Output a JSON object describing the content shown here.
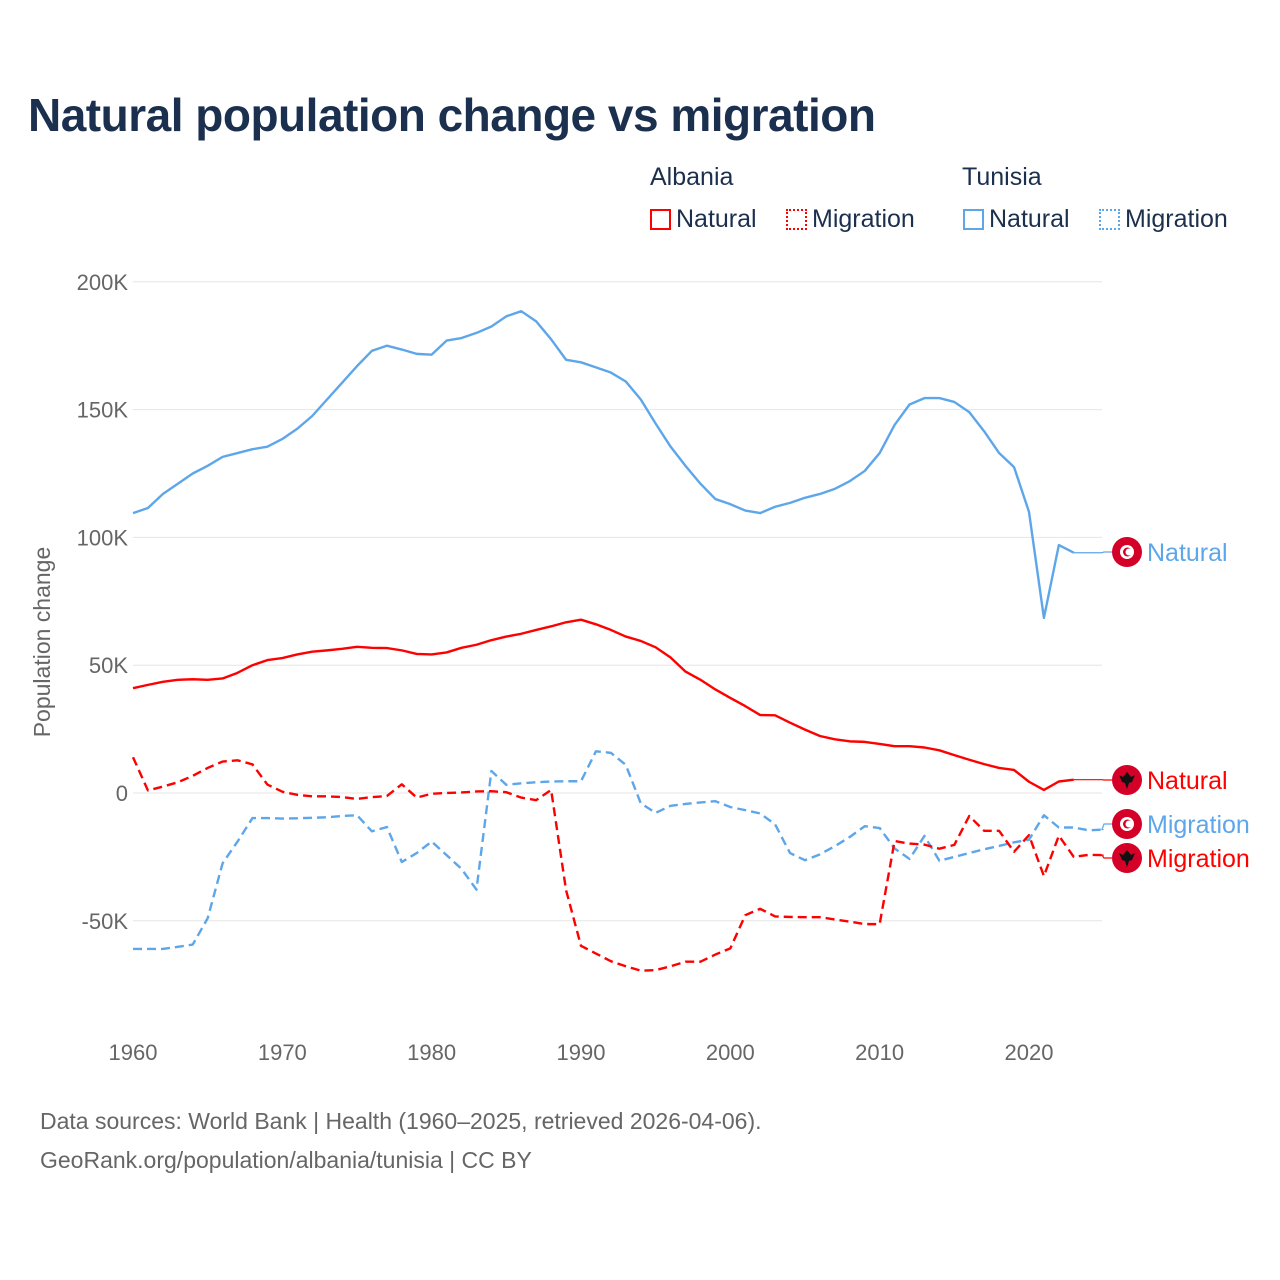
{
  "title": "Natural population change vs migration",
  "legend": {
    "groups": [
      {
        "name": "Albania",
        "items": [
          {
            "label": "Natural",
            "style": "solid"
          },
          {
            "label": "Migration",
            "style": "dotted"
          }
        ],
        "color": "#ff0000"
      },
      {
        "name": "Tunisia",
        "items": [
          {
            "label": "Natural",
            "style": "solid"
          },
          {
            "label": "Migration",
            "style": "dotted"
          }
        ],
        "color": "#5ea6ea"
      }
    ]
  },
  "footer": {
    "line1": "Data sources: World Bank | Health (1960–2025, retrieved 2026-04-06).",
    "line2": "GeoRank.org/population/albania/tunisia | CC BY"
  },
  "chart_data": {
    "type": "line",
    "title": "Natural population change vs migration",
    "xlabel": "",
    "ylabel": "Population change",
    "xlim": [
      1960,
      2025
    ],
    "ylim": [
      -85000,
      200000
    ],
    "x_ticks": [
      1960,
      1970,
      1980,
      1990,
      2000,
      2010,
      2020
    ],
    "x_tick_labels": [
      "1960",
      "1970",
      "1980",
      "1990",
      "2000",
      "2010",
      "2020"
    ],
    "y_ticks": [
      200000,
      150000,
      100000,
      50000,
      0,
      -50000
    ],
    "y_tick_labels": [
      "200K",
      "150K",
      "100K",
      "50K",
      "0",
      "-50K"
    ],
    "grid": true,
    "legend_placement": "top-right",
    "x_start": 1960,
    "series": [
      {
        "name": "Tunisia Natural",
        "country": "Tunisia",
        "end_label": "Natural",
        "color": "#5ea6ea",
        "dash": "solid",
        "values": [
          109500,
          111500,
          117000,
          121000,
          125000,
          128000,
          131500,
          133000,
          134500,
          135500,
          138500,
          142500,
          147500,
          154000,
          160500,
          167000,
          173000,
          175000,
          173500,
          171800,
          171500,
          177000,
          178000,
          180000,
          182500,
          186500,
          188500,
          184500,
          177500,
          169500,
          168500,
          166500,
          164500,
          161000,
          154000,
          144500,
          135500,
          128000,
          121000,
          115000,
          113000,
          110500,
          109500,
          112000,
          113500,
          115500,
          117000,
          119000,
          122000,
          126000,
          133000,
          144000,
          152000,
          154500,
          154500,
          153000,
          149000,
          141500,
          133000,
          127500,
          110000,
          68500,
          97000,
          94000
        ]
      },
      {
        "name": "Albania Natural",
        "country": "Albania",
        "end_label": "Natural",
        "color": "#ff0000",
        "dash": "solid",
        "values": [
          41000,
          42300,
          43500,
          44300,
          44500,
          44300,
          44800,
          47000,
          50000,
          52000,
          52800,
          54200,
          55300,
          55800,
          56400,
          57200,
          56800,
          56700,
          55800,
          54400,
          54200,
          55000,
          56800,
          58000,
          59800,
          61200,
          62300,
          63800,
          65200,
          66800,
          67800,
          66000,
          63800,
          61200,
          59500,
          57000,
          53000,
          47500,
          44300,
          40500,
          37200,
          34000,
          30500,
          30400,
          27500,
          24800,
          22300,
          21000,
          20200,
          20000,
          19200,
          18300,
          18300,
          17800,
          16700,
          14800,
          13000,
          11300,
          9800,
          9000,
          4400,
          1200,
          4500,
          5200
        ]
      },
      {
        "name": "Tunisia Migration",
        "country": "Tunisia",
        "end_label": "Migration",
        "color": "#5ea6ea",
        "dash": "dashed",
        "values": [
          -61000,
          -61000,
          -61000,
          -60200,
          -59300,
          -49000,
          -27500,
          -19000,
          -9800,
          -9800,
          -10000,
          -9900,
          -9700,
          -9500,
          -9000,
          -8700,
          -15000,
          -13300,
          -27000,
          -23500,
          -19000,
          -24300,
          -29700,
          -37800,
          8600,
          3200,
          3800,
          4200,
          4500,
          4600,
          4600,
          16300,
          15700,
          11000,
          -4000,
          -7800,
          -5000,
          -4300,
          -3700,
          -3200,
          -5500,
          -6700,
          -8000,
          -12300,
          -23500,
          -26300,
          -24000,
          -20800,
          -17200,
          -13000,
          -13700,
          -21700,
          -25800,
          -16800,
          -26500,
          -25000,
          -23500,
          -22000,
          -20700,
          -19300,
          -18300,
          -8700,
          -13500,
          -13500,
          -14600,
          -14300
        ]
      },
      {
        "name": "Albania Migration",
        "country": "Albania",
        "end_label": "Migration",
        "color": "#ff0000",
        "dash": "dashed",
        "values": [
          14000,
          1000,
          2500,
          4200,
          6700,
          9800,
          12300,
          12800,
          11200,
          3300,
          500,
          -700,
          -1300,
          -1300,
          -1600,
          -2300,
          -1600,
          -1200,
          3400,
          -1800,
          -300,
          0,
          200,
          600,
          700,
          300,
          -1800,
          -2800,
          1200,
          -38000,
          -59800,
          -62800,
          -65800,
          -67800,
          -69500,
          -69300,
          -67800,
          -66000,
          -66000,
          -63200,
          -60800,
          -47800,
          -45300,
          -48300,
          -48500,
          -48600,
          -48600,
          -49500,
          -50300,
          -51300,
          -51300,
          -18800,
          -19800,
          -20200,
          -21800,
          -20300,
          -9000,
          -14800,
          -14800,
          -23000,
          -16500,
          -32500,
          -16700,
          -25000,
          -24200,
          -24300
        ]
      }
    ]
  }
}
